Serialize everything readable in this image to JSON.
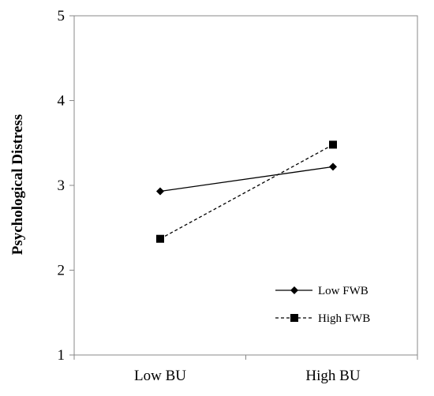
{
  "chart_data": {
    "type": "line",
    "categories": [
      "Low BU",
      "High BU"
    ],
    "series": [
      {
        "name": "Low FWB",
        "values": [
          2.93,
          3.22
        ],
        "line": "solid",
        "marker": "diamond"
      },
      {
        "name": "High FWB",
        "values": [
          2.37,
          3.48
        ],
        "line": "dashed",
        "marker": "square"
      }
    ],
    "title": "",
    "xlabel": "",
    "ylabel": "Psychological Distress",
    "ylim": [
      1,
      5
    ],
    "yticks": [
      1,
      2,
      3,
      4,
      5
    ],
    "grid": false,
    "legend_position": "bottom-right",
    "colors": {
      "line": "#000000",
      "background": "#ffffff"
    }
  }
}
